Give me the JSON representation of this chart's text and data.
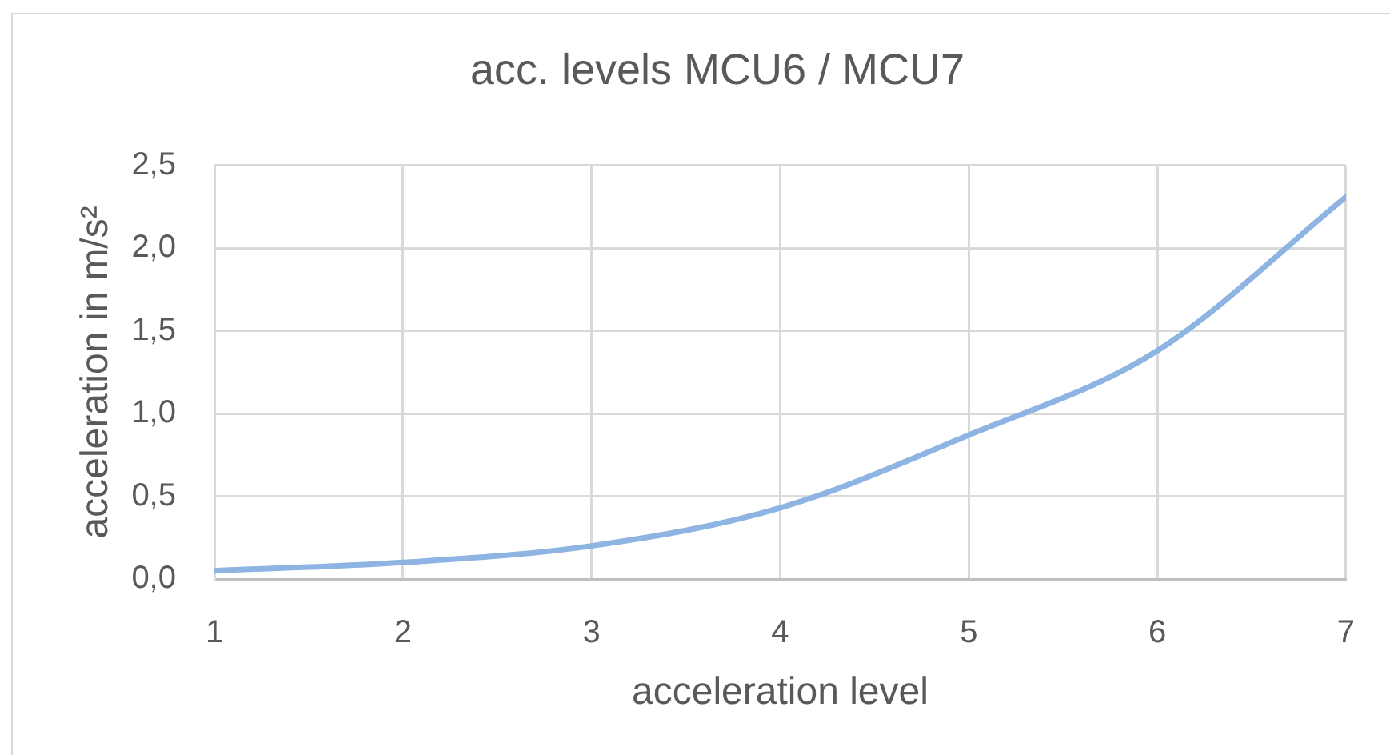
{
  "chart_data": {
    "type": "line",
    "title": "acc. levels MCU6 / MCU7",
    "xlabel": "acceleration level",
    "ylabel": "acceleration in m/s²",
    "x": [
      1,
      2,
      3,
      4,
      5,
      6,
      7
    ],
    "series": [
      {
        "color": "#8db4e2",
        "values": [
          0.05,
          0.1,
          0.2,
          0.43,
          0.87,
          1.38,
          2.31
        ]
      }
    ],
    "xlim": [
      1,
      7
    ],
    "xticks": [
      1,
      2,
      3,
      4,
      5,
      6,
      7
    ],
    "ylim": [
      0,
      2.5
    ],
    "yticks": [
      {
        "value": 0,
        "label": "0,0"
      },
      {
        "value": 0.5,
        "label": "0,5"
      },
      {
        "value": 1,
        "label": "1,0"
      },
      {
        "value": 1.5,
        "label": "1,5"
      },
      {
        "value": 2,
        "label": "2,0"
      },
      {
        "value": 2.5,
        "label": "2,5"
      }
    ],
    "grid": true,
    "marker": "none",
    "line_style": "solid"
  }
}
